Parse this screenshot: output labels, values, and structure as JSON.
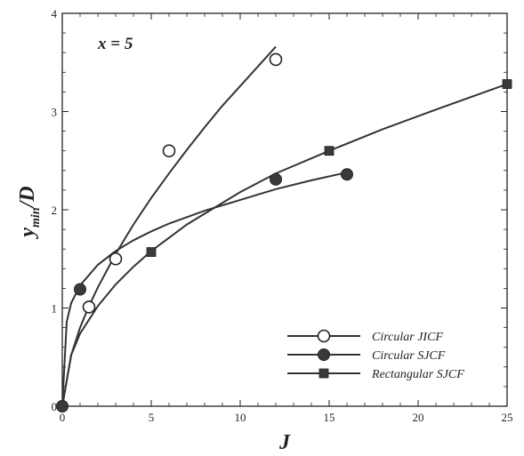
{
  "chart_data": {
    "type": "line",
    "annotation": "x = 5",
    "xlabel": "J",
    "ylabel_main": "y",
    "ylabel_sub": "min",
    "ylabel_tail": "/D",
    "xlim": [
      0,
      25
    ],
    "ylim": [
      0,
      4
    ],
    "xticks": [
      "0",
      "5",
      "10",
      "15",
      "20",
      "25"
    ],
    "yticks": [
      "0",
      "1",
      "2",
      "3",
      "4"
    ],
    "legend_position": "bottom-right",
    "colors": {
      "ink": "#222222",
      "curve": "#333333"
    },
    "series": [
      {
        "name": "Circular JICF",
        "marker": "open-circle",
        "points": [
          [
            1.5,
            1.01
          ],
          [
            3,
            1.5
          ],
          [
            6,
            2.6
          ],
          [
            12,
            3.53
          ]
        ],
        "fit": [
          [
            0,
            0
          ],
          [
            0.5,
            0.52
          ],
          [
            1,
            0.8
          ],
          [
            1.5,
            1.02
          ],
          [
            2,
            1.21
          ],
          [
            3,
            1.55
          ],
          [
            4,
            1.85
          ],
          [
            5,
            2.12
          ],
          [
            6,
            2.37
          ],
          [
            7,
            2.61
          ],
          [
            8,
            2.84
          ],
          [
            9,
            3.06
          ],
          [
            10,
            3.26
          ],
          [
            11,
            3.46
          ],
          [
            12,
            3.66
          ]
        ]
      },
      {
        "name": "Circular SJCF",
        "marker": "filled-circle",
        "points": [
          [
            0,
            0
          ],
          [
            1,
            1.19
          ],
          [
            12,
            2.31
          ],
          [
            16,
            2.36
          ]
        ],
        "fit": [
          [
            0,
            0
          ],
          [
            0.25,
            0.86
          ],
          [
            0.5,
            1.05
          ],
          [
            1,
            1.23
          ],
          [
            2,
            1.44
          ],
          [
            3,
            1.58
          ],
          [
            4,
            1.69
          ],
          [
            5,
            1.78
          ],
          [
            6,
            1.86
          ],
          [
            8,
            1.99
          ],
          [
            10,
            2.1
          ],
          [
            12,
            2.21
          ],
          [
            14,
            2.3
          ],
          [
            16,
            2.38
          ]
        ]
      },
      {
        "name": "Rectangular SJCF",
        "marker": "filled-square",
        "points": [
          [
            5,
            1.57
          ],
          [
            15,
            2.6
          ],
          [
            25,
            3.28
          ]
        ],
        "fit": [
          [
            0,
            0
          ],
          [
            0.5,
            0.52
          ],
          [
            1,
            0.74
          ],
          [
            2,
            1.02
          ],
          [
            3,
            1.24
          ],
          [
            4,
            1.42
          ],
          [
            5,
            1.58
          ],
          [
            7,
            1.85
          ],
          [
            10,
            2.18
          ],
          [
            12,
            2.37
          ],
          [
            15,
            2.6
          ],
          [
            18,
            2.82
          ],
          [
            21,
            3.02
          ],
          [
            25,
            3.28
          ]
        ]
      }
    ]
  }
}
